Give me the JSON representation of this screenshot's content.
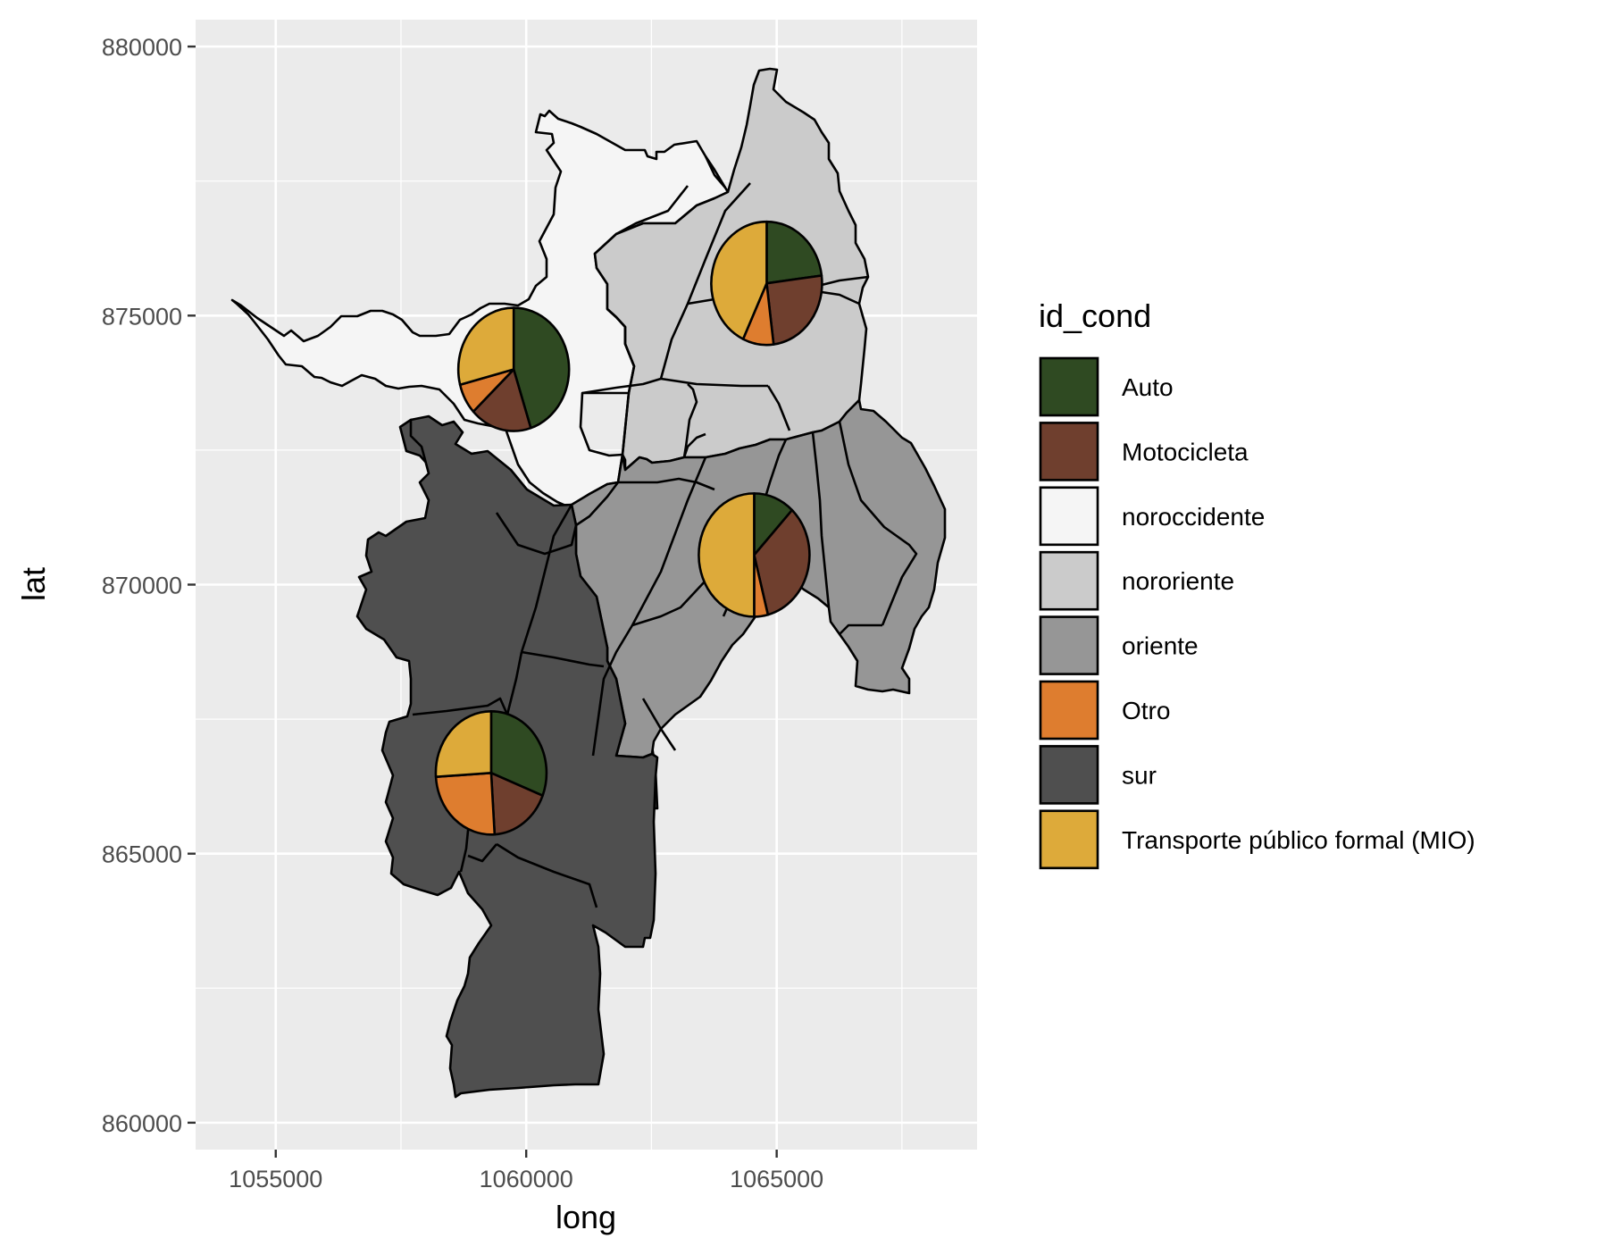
{
  "chart_data": {
    "type": "map",
    "title": "",
    "xlabel": "long",
    "ylabel": "lat",
    "xlim": [
      1053400,
      1069000
    ],
    "ylim": [
      859500,
      880500
    ],
    "x_ticks": [
      1055000,
      1060000,
      1065000
    ],
    "x_tick_labels": [
      "1055000",
      "1060000",
      "1065000"
    ],
    "y_ticks": [
      860000,
      865000,
      870000,
      875000,
      880000
    ],
    "y_tick_labels": [
      "860000",
      "865000",
      "870000",
      "875000",
      "880000"
    ],
    "grid": true,
    "panel_background": "#ebebeb",
    "legend": {
      "title": "id_cond",
      "position": "right",
      "entries": [
        {
          "label": "Auto",
          "color": "#2f4a22"
        },
        {
          "label": "Motocicleta",
          "color": "#6f3f2e"
        },
        {
          "label": "noroccidente",
          "color": "#f5f5f5"
        },
        {
          "label": "nororiente",
          "color": "#cbcbcb"
        },
        {
          "label": "oriente",
          "color": "#969696"
        },
        {
          "label": "Otro",
          "color": "#de7d2f"
        },
        {
          "label": "sur",
          "color": "#4f4f4f"
        },
        {
          "label": "Transporte público formal (MIO)",
          "color": "#ddaa3a"
        }
      ]
    },
    "regions": [
      {
        "name": "noroccidente",
        "color": "#f5f5f5"
      },
      {
        "name": "nororiente",
        "color": "#cbcbcb"
      },
      {
        "name": "oriente",
        "color": "#969696"
      },
      {
        "name": "sur",
        "color": "#4f4f4f"
      }
    ],
    "pies": [
      {
        "region": "noroccidente",
        "center": [
          1059750,
          874000
        ],
        "slices": [
          {
            "category": "Auto",
            "share": 0.45
          },
          {
            "category": "Motocicleta",
            "share": 0.18
          },
          {
            "category": "Otro",
            "share": 0.08
          },
          {
            "category": "Transporte público formal (MIO)",
            "share": 0.29
          }
        ]
      },
      {
        "region": "nororiente",
        "center": [
          1064800,
          875600
        ],
        "slices": [
          {
            "category": "Auto",
            "share": 0.23
          },
          {
            "category": "Motocicleta",
            "share": 0.25
          },
          {
            "category": "Otro",
            "share": 0.09
          },
          {
            "category": "Transporte público formal (MIO)",
            "share": 0.43
          }
        ]
      },
      {
        "region": "oriente",
        "center": [
          1064550,
          870550
        ],
        "slices": [
          {
            "category": "Auto",
            "share": 0.12
          },
          {
            "category": "Motocicleta",
            "share": 0.34
          },
          {
            "category": "Otro",
            "share": 0.04
          },
          {
            "category": "Transporte público formal (MIO)",
            "share": 0.5
          }
        ]
      },
      {
        "region": "sur",
        "center": [
          1059300,
          866500
        ],
        "slices": [
          {
            "category": "Auto",
            "share": 0.31
          },
          {
            "category": "Motocicleta",
            "share": 0.18
          },
          {
            "category": "Otro",
            "share": 0.25
          },
          {
            "category": "Transporte público formal (MIO)",
            "share": 0.26
          }
        ]
      }
    ]
  }
}
